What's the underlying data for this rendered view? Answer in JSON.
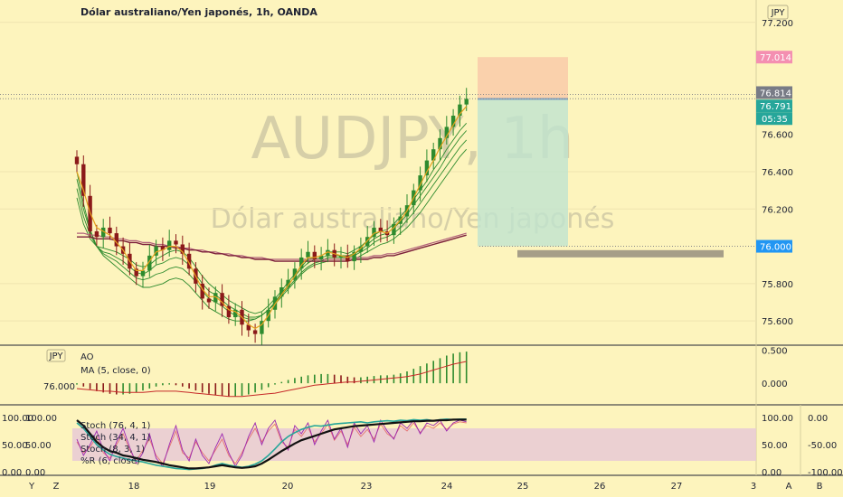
{
  "chart_data": {
    "type": "candlestick",
    "title": "Dólar australiano/Yen japonés, 1h, OANDA",
    "watermark_symbol": "AUDJPY, 1h",
    "watermark_name": "Dólar australiano/Yen japonés",
    "currency_badge": "JPY",
    "ylim": [
      75.47,
      77.32
    ],
    "y_ticks": [
      "77.200",
      "76.400",
      "76.200",
      "75.800",
      "75.600"
    ],
    "price_labels": {
      "target": {
        "value": 77.014,
        "text": "77.014",
        "color": "#f48fb1"
      },
      "high": {
        "value": 76.814,
        "text": "76.814",
        "color": "#787b86"
      },
      "last": {
        "value": 76.791,
        "text": "76.791",
        "color": "#26a69a"
      },
      "countdown": "05:35",
      "stop": {
        "value": 76.0,
        "text": "76.000",
        "color": "#2196f3"
      },
      "partial_tick": "76.600"
    },
    "x_ticks": [
      "18",
      "19",
      "20",
      "23",
      "24",
      "25",
      "26",
      "27",
      "3"
    ],
    "bottom_buttons": [
      "Y",
      "Z",
      "A",
      "B"
    ],
    "trade_box": {
      "entry": 76.79,
      "target": 77.014,
      "stop": 76.0
    },
    "stop_line": 75.96,
    "closes": [
      76.44,
      76.27,
      76.08,
      76.05,
      76.1,
      76.07,
      76.0,
      75.96,
      75.88,
      75.84,
      75.87,
      75.95,
      76.0,
      75.98,
      76.03,
      76.01,
      75.96,
      75.88,
      75.8,
      75.72,
      75.7,
      75.75,
      75.68,
      75.62,
      75.66,
      75.58,
      75.55,
      75.53,
      75.6,
      75.66,
      75.73,
      75.78,
      75.82,
      75.88,
      75.94,
      75.97,
      75.93,
      75.95,
      75.98,
      75.94,
      75.95,
      75.92,
      75.97,
      76.0,
      76.05,
      76.1,
      76.08,
      76.06,
      76.12,
      76.16,
      76.22,
      76.3,
      76.38,
      76.46,
      76.52,
      76.58,
      76.64,
      76.7,
      76.76,
      76.79
    ],
    "ema_fast": [
      76.4,
      76.3,
      76.18,
      76.1,
      76.08,
      76.06,
      76.02,
      75.98,
      75.92,
      75.87,
      75.87,
      75.92,
      75.97,
      75.98,
      76.0,
      76.0,
      75.97,
      75.91,
      75.84,
      75.77,
      75.73,
      75.73,
      75.7,
      75.66,
      75.65,
      75.62,
      75.58,
      75.56,
      75.58,
      75.63,
      75.69,
      75.74,
      75.79,
      75.84,
      75.9,
      75.94,
      75.94,
      75.95,
      75.97,
      75.96,
      75.95,
      75.94,
      75.96,
      75.99,
      76.03,
      76.07,
      76.08,
      76.07,
      76.1,
      76.14,
      76.19,
      76.26,
      76.33,
      76.4,
      76.46,
      76.53,
      76.59,
      76.65,
      76.71,
      76.75
    ],
    "ribbon": [
      {
        "name": "band-1",
        "color": "#2e8b2e",
        "values": [
          76.4,
          76.23,
          76.09,
          76.0,
          75.95,
          75.92,
          75.89,
          75.86,
          75.83,
          75.8,
          75.78,
          75.78,
          75.79,
          75.8,
          75.82,
          75.83,
          75.82,
          75.79,
          75.75,
          75.71,
          75.67,
          75.65,
          75.63,
          75.61,
          75.6,
          75.6,
          75.6,
          75.61,
          75.63,
          75.66,
          75.69,
          75.73,
          75.77,
          75.81,
          75.85,
          75.88,
          75.9,
          75.91,
          75.92,
          75.92,
          75.92,
          75.92,
          75.93,
          75.95,
          75.97,
          75.99,
          76.01,
          76.02,
          76.04,
          76.07,
          76.1,
          76.14,
          76.18,
          76.23,
          76.28,
          76.33,
          76.38,
          76.43,
          76.48,
          76.52
        ]
      },
      {
        "name": "band-2",
        "color": "#2e8b2e",
        "values": [
          76.36,
          76.2,
          76.08,
          76.0,
          75.96,
          75.94,
          75.92,
          75.89,
          75.86,
          75.83,
          75.82,
          75.83,
          75.85,
          75.86,
          75.88,
          75.89,
          75.88,
          75.85,
          75.81,
          75.76,
          75.72,
          75.7,
          75.68,
          75.65,
          75.63,
          75.62,
          75.61,
          75.61,
          75.63,
          75.66,
          75.7,
          75.74,
          75.78,
          75.82,
          75.86,
          75.89,
          75.91,
          75.92,
          75.94,
          75.94,
          75.94,
          75.94,
          75.95,
          75.97,
          75.99,
          76.02,
          76.04,
          76.05,
          76.07,
          76.1,
          76.14,
          76.18,
          76.23,
          76.28,
          76.33,
          76.38,
          76.43,
          76.48,
          76.53,
          76.57
        ]
      },
      {
        "name": "band-3",
        "color": "#2e8b2e",
        "values": [
          76.31,
          76.16,
          76.06,
          76.0,
          75.97,
          75.96,
          75.94,
          75.92,
          75.89,
          75.86,
          75.85,
          75.87,
          75.9,
          75.91,
          75.93,
          75.94,
          75.93,
          75.9,
          75.85,
          75.8,
          75.76,
          75.74,
          75.71,
          75.68,
          75.66,
          75.64,
          75.62,
          75.62,
          75.63,
          75.66,
          75.7,
          75.75,
          75.79,
          75.84,
          75.88,
          75.91,
          75.93,
          75.94,
          75.95,
          75.95,
          75.95,
          75.95,
          75.96,
          75.98,
          76.01,
          76.04,
          76.06,
          76.07,
          76.1,
          76.13,
          76.17,
          76.22,
          76.27,
          76.32,
          76.37,
          76.42,
          76.48,
          76.53,
          76.58,
          76.62
        ]
      },
      {
        "name": "band-4",
        "color": "#2e8b2e",
        "values": [
          76.26,
          76.12,
          76.04,
          76.0,
          75.99,
          75.98,
          75.97,
          75.95,
          75.93,
          75.9,
          75.89,
          75.9,
          75.93,
          75.95,
          75.97,
          75.98,
          75.97,
          75.94,
          75.89,
          75.84,
          75.8,
          75.77,
          75.74,
          75.71,
          75.69,
          75.67,
          75.65,
          75.64,
          75.65,
          75.68,
          75.72,
          75.76,
          75.81,
          75.85,
          75.89,
          75.93,
          75.94,
          75.95,
          75.97,
          75.97,
          75.97,
          75.96,
          75.98,
          76.0,
          76.03,
          76.06,
          76.08,
          76.09,
          76.12,
          76.16,
          76.2,
          76.25,
          76.3,
          76.35,
          76.41,
          76.46,
          76.52,
          76.57,
          76.62,
          76.66
        ]
      }
    ],
    "ma_slow_1": {
      "name": "slow-ma-1",
      "color": "#7b1e3a",
      "values": [
        76.05,
        76.05,
        76.05,
        76.04,
        76.04,
        76.04,
        76.03,
        76.03,
        76.02,
        76.02,
        76.01,
        76.01,
        76.0,
        76.0,
        76.0,
        75.99,
        75.99,
        75.98,
        75.98,
        75.97,
        75.97,
        75.96,
        75.96,
        75.95,
        75.95,
        75.94,
        75.94,
        75.93,
        75.93,
        75.93,
        75.92,
        75.92,
        75.92,
        75.92,
        75.92,
        75.92,
        75.92,
        75.92,
        75.92,
        75.92,
        75.92,
        75.92,
        75.93,
        75.93,
        75.93,
        75.94,
        75.94,
        75.95,
        75.95,
        75.96,
        75.97,
        75.98,
        75.99,
        76.0,
        76.01,
        76.02,
        76.03,
        76.04,
        76.05,
        76.06
      ]
    },
    "ma_slow_2": {
      "name": "slow-ma-2",
      "color": "#b2607a",
      "values": [
        76.07,
        76.07,
        76.06,
        76.06,
        76.05,
        76.05,
        76.04,
        76.04,
        76.03,
        76.03,
        76.02,
        76.02,
        76.01,
        76.01,
        76.0,
        76.0,
        75.99,
        75.99,
        75.98,
        75.98,
        75.97,
        75.97,
        75.96,
        75.96,
        75.95,
        75.95,
        75.94,
        75.94,
        75.94,
        75.93,
        75.93,
        75.93,
        75.93,
        75.93,
        75.93,
        75.93,
        75.93,
        75.93,
        75.93,
        75.93,
        75.93,
        75.93,
        75.94,
        75.94,
        75.94,
        75.95,
        75.95,
        75.96,
        75.96,
        75.97,
        75.98,
        75.99,
        76.0,
        76.01,
        76.02,
        76.03,
        76.04,
        76.05,
        76.06,
        76.07
      ]
    },
    "ao": {
      "label": "AO",
      "ma_label": "MA (5, close, 0)",
      "badge": "JPY",
      "level_label": "76.000",
      "ylim": [
        -0.3,
        0.55
      ],
      "y_ticks": [
        "0.500",
        "0.000"
      ],
      "values": [
        -0.02,
        -0.05,
        -0.09,
        -0.12,
        -0.14,
        -0.16,
        -0.17,
        -0.17,
        -0.16,
        -0.14,
        -0.11,
        -0.08,
        -0.05,
        -0.03,
        -0.02,
        -0.03,
        -0.05,
        -0.08,
        -0.11,
        -0.14,
        -0.16,
        -0.18,
        -0.19,
        -0.2,
        -0.2,
        -0.19,
        -0.17,
        -0.14,
        -0.1,
        -0.06,
        -0.02,
        0.02,
        0.05,
        0.08,
        0.1,
        0.12,
        0.13,
        0.14,
        0.14,
        0.13,
        0.12,
        0.1,
        0.09,
        0.09,
        0.1,
        0.11,
        0.12,
        0.12,
        0.13,
        0.15,
        0.18,
        0.22,
        0.26,
        0.3,
        0.34,
        0.38,
        0.42,
        0.45,
        0.47,
        0.48
      ],
      "ma": [
        -0.08,
        -0.09,
        -0.1,
        -0.11,
        -0.12,
        -0.12,
        -0.13,
        -0.14,
        -0.14,
        -0.14,
        -0.14,
        -0.13,
        -0.12,
        -0.12,
        -0.12,
        -0.12,
        -0.13,
        -0.14,
        -0.15,
        -0.16,
        -0.17,
        -0.18,
        -0.19,
        -0.2,
        -0.2,
        -0.2,
        -0.19,
        -0.18,
        -0.17,
        -0.16,
        -0.15,
        -0.13,
        -0.11,
        -0.09,
        -0.07,
        -0.05,
        -0.03,
        -0.02,
        -0.01,
        0.0,
        0.01,
        0.02,
        0.02,
        0.03,
        0.04,
        0.05,
        0.06,
        0.07,
        0.08,
        0.09,
        0.1,
        0.12,
        0.14,
        0.17,
        0.2,
        0.23,
        0.26,
        0.29,
        0.31,
        0.33
      ]
    },
    "stoch": {
      "labels": [
        "Stoch (76, 4, 1)",
        "Stoch (34, 4, 1)",
        "Stoch (8, 3, 1)",
        "%R (6, close)"
      ],
      "left_ticks": [
        "100.00",
        "50.00",
        "0.00"
      ],
      "left_ticks_2": [
        "100.00",
        "50.00",
        "0.00"
      ],
      "right_ticks": [
        "100.00",
        "50.00",
        "0.00"
      ],
      "r_ticks": [
        "0.00",
        "-50.00",
        "-100.00"
      ],
      "band": [
        20,
        80
      ],
      "series": [
        {
          "name": "Stoch (76, 4, 1)",
          "color": "#111111",
          "values": [
            95,
            85,
            70,
            55,
            45,
            38,
            35,
            30,
            28,
            25,
            22,
            20,
            18,
            15,
            12,
            10,
            8,
            6,
            6,
            7,
            8,
            10,
            12,
            10,
            8,
            7,
            8,
            10,
            15,
            22,
            30,
            38,
            45,
            52,
            58,
            62,
            66,
            70,
            74,
            78,
            80,
            82,
            84,
            85,
            86,
            87,
            88,
            89,
            90,
            91,
            92,
            93,
            93,
            94,
            94,
            95,
            95,
            96,
            96,
            96
          ]
        },
        {
          "name": "Stoch (34, 4, 1)",
          "color": "#26a69a",
          "values": [
            90,
            80,
            65,
            50,
            40,
            32,
            28,
            25,
            22,
            20,
            18,
            15,
            12,
            10,
            8,
            6,
            5,
            4,
            5,
            6,
            8,
            12,
            15,
            12,
            10,
            8,
            10,
            14,
            20,
            30,
            42,
            55,
            65,
            72,
            78,
            82,
            85,
            84,
            86,
            88,
            89,
            90,
            91,
            92,
            90,
            92,
            93,
            94,
            93,
            95,
            94,
            96,
            95,
            96,
            94,
            96,
            97,
            96,
            97,
            97
          ]
        },
        {
          "name": "Stoch (8, 3, 1)",
          "color": "#9c27b0",
          "values": [
            60,
            30,
            50,
            75,
            40,
            20,
            55,
            80,
            45,
            15,
            35,
            70,
            25,
            10,
            50,
            85,
            40,
            20,
            60,
            30,
            15,
            45,
            70,
            35,
            10,
            30,
            65,
            90,
            50,
            80,
            95,
            60,
            40,
            85,
            70,
            90,
            50,
            75,
            95,
            60,
            80,
            45,
            90,
            70,
            85,
            55,
            95,
            75,
            60,
            90,
            80,
            95,
            70,
            90,
            85,
            95,
            75,
            90,
            95,
            92
          ]
        },
        {
          "name": "%R (6, close)",
          "color": "#e57373",
          "values": [
            55,
            35,
            45,
            65,
            35,
            25,
            50,
            70,
            40,
            20,
            40,
            60,
            30,
            15,
            45,
            75,
            35,
            25,
            55,
            35,
            20,
            40,
            60,
            30,
            15,
            35,
            60,
            80,
            55,
            75,
            88,
            55,
            45,
            78,
            65,
            82,
            55,
            70,
            88,
            58,
            75,
            50,
            82,
            65,
            78,
            60,
            88,
            70,
            62,
            85,
            75,
            90,
            72,
            85,
            80,
            90,
            78,
            88,
            92,
            90
          ]
        }
      ]
    }
  }
}
